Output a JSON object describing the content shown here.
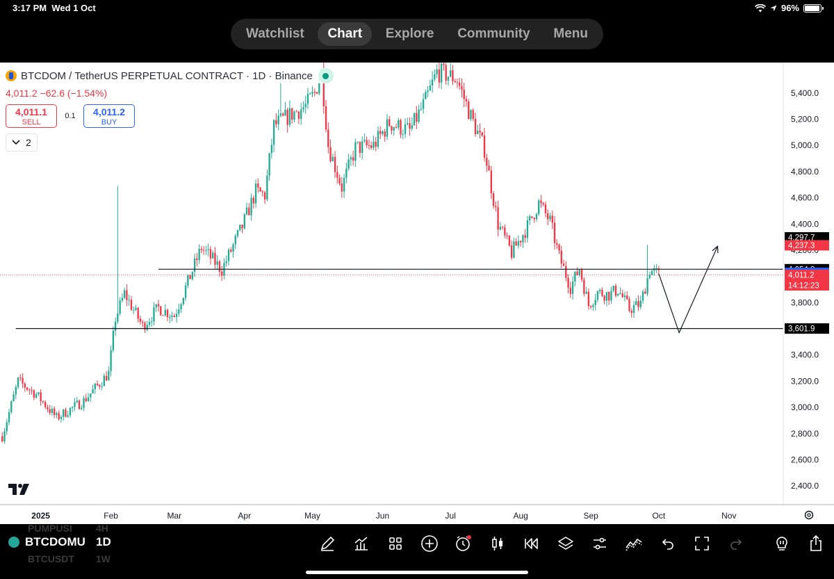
{
  "status_bar": {
    "time": "3:17 PM",
    "date": "Wed 1 Oct",
    "battery": "96%",
    "battery_level": 0.96
  },
  "nav": {
    "tabs": [
      "Watchlist",
      "Chart",
      "Explore",
      "Community",
      "Menu"
    ],
    "active": "Chart"
  },
  "legend": {
    "title": "BTCDOM / TetherUS PERPETUAL CONTRACT · 1D · Binance",
    "price_change": "4,011.2 −62.6 (−1.54%)",
    "sell": {
      "value": "4,011.1",
      "label": "SELL"
    },
    "spread": "0.1",
    "buy": {
      "value": "4,011.2",
      "label": "BUY"
    },
    "collapse_count": "2"
  },
  "bottom_bar": {
    "symbol": "BTCDOMU",
    "timeframe": "1D",
    "ghost_rows": [
      {
        "symbol": "PUMPUSI",
        "timeframe": "4H"
      },
      {
        "symbol": "BTCUSDT",
        "timeframe": "1W"
      }
    ],
    "tool_icons": [
      "draw-icon",
      "indicators-icon",
      "layouts-icon",
      "add-icon",
      "alert-icon",
      "chart-type-icon",
      "replay-icon",
      "layers-icon",
      "settings-icon",
      "strategy-icon",
      "undo-icon",
      "fullscreen-icon",
      "redo-icon",
      "ideas-icon",
      "share-icon"
    ]
  },
  "colors": {
    "up": "#22ab94",
    "down": "#f23645",
    "buy": "#2962ff",
    "label_black": "#000000"
  },
  "chart_data": {
    "type": "candlestick",
    "y_ticks": [
      "5,400.0",
      "5,200.0",
      "5,000.0",
      "4,800.0",
      "4,600.0",
      "4,400.0",
      "4,200.0",
      "4,000.0",
      "3,800.0",
      "3,600.0",
      "3,400.0",
      "3,200.0",
      "3,000.0",
      "2,800.0",
      "2,600.0",
      "2,400.0"
    ],
    "y_range": [
      2300,
      5590
    ],
    "x_ticks": [
      {
        "label": "2025",
        "date": "2025-01-01",
        "bold": true
      },
      {
        "label": "Feb",
        "date": "2025-02-01"
      },
      {
        "label": "Mar",
        "date": "2025-03-01"
      },
      {
        "label": "Apr",
        "date": "2025-04-01"
      },
      {
        "label": "May",
        "date": "2025-05-01"
      },
      {
        "label": "Jun",
        "date": "2025-06-01"
      },
      {
        "label": "Jul",
        "date": "2025-07-01"
      },
      {
        "label": "Aug",
        "date": "2025-08-01"
      },
      {
        "label": "Sep",
        "date": "2025-09-01"
      },
      {
        "label": "Oct",
        "date": "2025-10-01"
      },
      {
        "label": "Nov",
        "date": "2025-11-01"
      }
    ],
    "x_range": [
      "2024-12-14",
      "2025-11-25"
    ],
    "price_labels": [
      {
        "text": "4,297.7",
        "value": 4297.7,
        "bg": "#000000"
      },
      {
        "text": "4,237.3",
        "value": 4237.3,
        "bg": "#f23645"
      },
      {
        "text": "4,054.8",
        "value": 4054.8,
        "bg": "#000000"
      },
      {
        "text": "4,026.5",
        "value": 4026.5,
        "bg": "#2962ff"
      },
      {
        "text": "4,011.2",
        "value": 4011.2,
        "bg": "#f23645",
        "countdown": "14:12:23"
      },
      {
        "text": "3,601.9",
        "value": 3601.9,
        "bg": "#000000"
      }
    ],
    "hlines": [
      {
        "value": 4054.8,
        "from": "2025-02-22"
      },
      {
        "value": 3601.9,
        "from": "2024-12-21"
      }
    ],
    "current_price_line": 4011.2,
    "projection_path": [
      {
        "date": "2025-10-01",
        "value": 4020
      },
      {
        "date": "2025-10-10",
        "value": 3570
      },
      {
        "date": "2025-10-27",
        "value": 4230
      }
    ],
    "key_points": [
      {
        "date": "2024-12-15",
        "value": 2780
      },
      {
        "date": "2024-12-22",
        "value": 3200
      },
      {
        "date": "2024-12-30",
        "value": 3100
      },
      {
        "date": "2025-01-08",
        "value": 2920
      },
      {
        "date": "2025-01-20",
        "value": 3050
      },
      {
        "date": "2025-01-31",
        "value": 3260
      },
      {
        "date": "2025-02-03",
        "value": 3680
      },
      {
        "date": "2025-02-07",
        "value": 3870
      },
      {
        "date": "2025-02-15",
        "value": 3620
      },
      {
        "date": "2025-02-22",
        "value": 3760
      },
      {
        "date": "2025-03-01",
        "value": 3700
      },
      {
        "date": "2025-03-08",
        "value": 4000
      },
      {
        "date": "2025-03-13",
        "value": 4220
      },
      {
        "date": "2025-03-22",
        "value": 4050
      },
      {
        "date": "2025-03-31",
        "value": 4380
      },
      {
        "date": "2025-04-06",
        "value": 4650
      },
      {
        "date": "2025-04-10",
        "value": 4620
      },
      {
        "date": "2025-04-14",
        "value": 5150
      },
      {
        "date": "2025-04-21",
        "value": 5230
      },
      {
        "date": "2025-04-28",
        "value": 5300
      },
      {
        "date": "2025-05-02",
        "value": 5400
      },
      {
        "date": "2025-05-05",
        "value": 5560
      },
      {
        "date": "2025-05-08",
        "value": 5000
      },
      {
        "date": "2025-05-14",
        "value": 4680
      },
      {
        "date": "2025-05-20",
        "value": 4980
      },
      {
        "date": "2025-05-28",
        "value": 5000
      },
      {
        "date": "2025-06-04",
        "value": 5170
      },
      {
        "date": "2025-06-13",
        "value": 5110
      },
      {
        "date": "2025-06-20",
        "value": 5340
      },
      {
        "date": "2025-06-25",
        "value": 5560
      },
      {
        "date": "2025-07-01",
        "value": 5530
      },
      {
        "date": "2025-07-04",
        "value": 5500
      },
      {
        "date": "2025-07-10",
        "value": 5220
      },
      {
        "date": "2025-07-16",
        "value": 4970
      },
      {
        "date": "2025-07-22",
        "value": 4400
      },
      {
        "date": "2025-07-28",
        "value": 4180
      },
      {
        "date": "2025-08-04",
        "value": 4380
      },
      {
        "date": "2025-08-09",
        "value": 4560
      },
      {
        "date": "2025-08-14",
        "value": 4420
      },
      {
        "date": "2025-08-18",
        "value": 4150
      },
      {
        "date": "2025-08-23",
        "value": 3920
      },
      {
        "date": "2025-08-27",
        "value": 4060
      },
      {
        "date": "2025-08-31",
        "value": 3780
      },
      {
        "date": "2025-09-04",
        "value": 3880
      },
      {
        "date": "2025-09-09",
        "value": 3860
      },
      {
        "date": "2025-09-13",
        "value": 3900
      },
      {
        "date": "2025-09-18",
        "value": 3750
      },
      {
        "date": "2025-09-23",
        "value": 3790
      },
      {
        "date": "2025-09-27",
        "value": 4050
      },
      {
        "date": "2025-10-01",
        "value": 4011.2
      }
    ],
    "wick_spikes": [
      {
        "date": "2025-02-04",
        "high": 4690
      },
      {
        "date": "2025-09-26",
        "high": 4240
      },
      {
        "date": "2025-04-17",
        "high": 5560
      }
    ]
  }
}
